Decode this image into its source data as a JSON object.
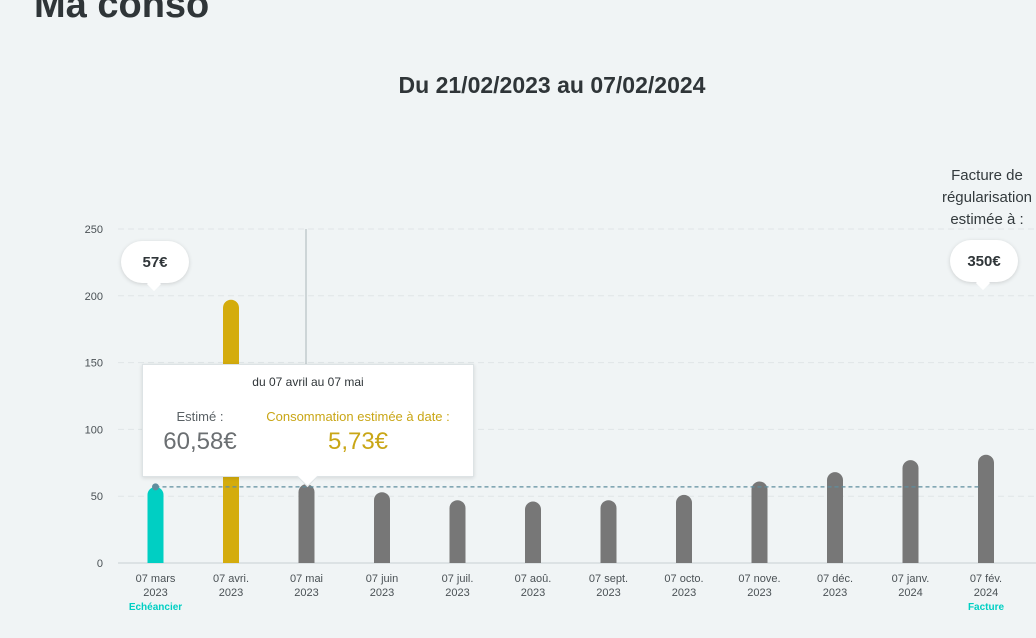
{
  "page": {
    "title": "Ma conso"
  },
  "period": {
    "label": "Du 21/02/2023 au 07/02/2024"
  },
  "regularisation": {
    "label": "Facture de régularisation estimée à :",
    "line1": "Facture de",
    "line2": "régularisation",
    "line3": "estimée à :",
    "amount": "350€"
  },
  "start_bubble": {
    "amount": "57€"
  },
  "tooltip": {
    "period": "du 07 avril au 07 mai",
    "estimated_label": "Estimé :",
    "estimated_value": "60,58€",
    "to_date_label": "Consommation estimée à date :",
    "to_date_value": "5,73€"
  },
  "colors": {
    "teal": "#00cfc3",
    "gold": "#d4ac0d",
    "grey_bar": "#777777",
    "dashed_line": "#5f8e9e",
    "grid": "#dfe5e7"
  },
  "chart_data": {
    "type": "bar",
    "categories": [
      "07 mars 2023",
      "07 avri. 2023",
      "07 mai 2023",
      "07 juin 2023",
      "07 juil. 2023",
      "07 aoû. 2023",
      "07 sept. 2023",
      "07 octo. 2023",
      "07 nove. 2023",
      "07 déc. 2023",
      "07 janv. 2024",
      "07 fév. 2024"
    ],
    "tick_labels": [
      [
        "07 mars",
        "2023"
      ],
      [
        "07 avri.",
        "2023"
      ],
      [
        "07 mai",
        "2023"
      ],
      [
        "07 juin",
        "2023"
      ],
      [
        "07 juil.",
        "2023"
      ],
      [
        "07 aoû.",
        "2023"
      ],
      [
        "07 sept.",
        "2023"
      ],
      [
        "07 octo.",
        "2023"
      ],
      [
        "07 nove.",
        "2023"
      ],
      [
        "07 déc.",
        "2023"
      ],
      [
        "07 janv.",
        "2024"
      ],
      [
        "07 fév.",
        "2024"
      ]
    ],
    "values": [
      57,
      197,
      59,
      53,
      47,
      46,
      47,
      51,
      61,
      68,
      77,
      81
    ],
    "bar_colors": [
      "teal",
      "gold",
      "grey",
      "grey",
      "grey",
      "grey",
      "grey",
      "grey",
      "grey",
      "grey",
      "grey",
      "grey"
    ],
    "sub_labels": {
      "0": "Echéancier",
      "11": "Facture"
    },
    "reference_line": {
      "value": 57,
      "style": "dashed"
    },
    "ylim": [
      0,
      250
    ],
    "yticks": [
      0,
      50,
      100,
      150,
      200,
      250
    ],
    "xlabel": "",
    "ylabel": "",
    "grid": true
  }
}
